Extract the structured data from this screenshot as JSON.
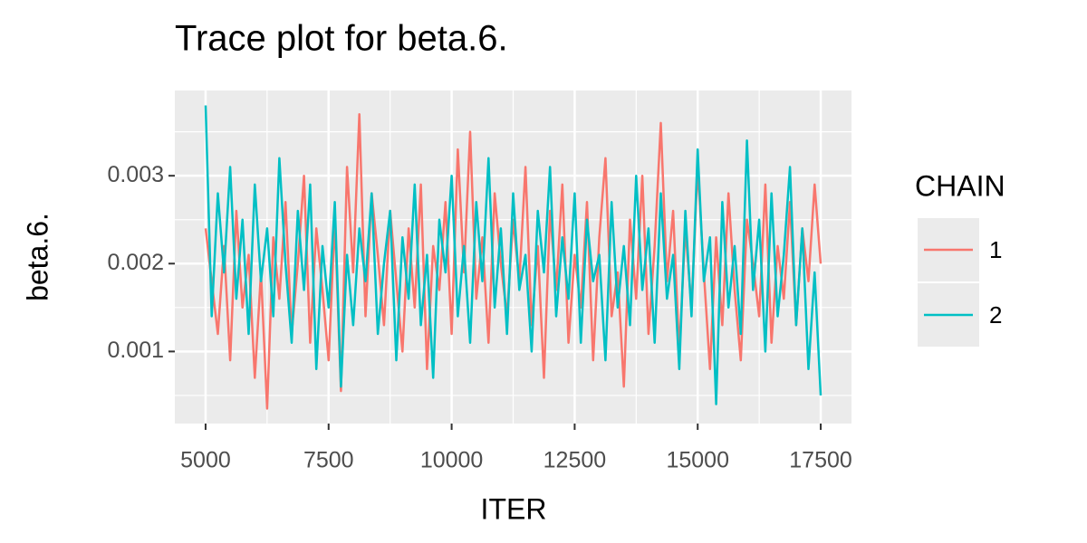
{
  "chart_data": {
    "type": "line",
    "title": "Trace plot for beta.6.",
    "xlabel": "ITER",
    "ylabel": "beta.6.",
    "legend_title": "CHAIN",
    "legend_position": "right",
    "grid": true,
    "xlim": [
      4375,
      18125
    ],
    "ylim": [
      0.00018,
      0.00397
    ],
    "xticks": [
      5000,
      7500,
      10000,
      12500,
      15000,
      17500
    ],
    "yticks": [
      0.001,
      0.002,
      0.003
    ],
    "x_minor_ticks": [
      6250,
      8750,
      11250,
      13750,
      16250
    ],
    "y_minor_ticks": [
      0.0005,
      0.0015,
      0.0025,
      0.0035
    ],
    "x": [
      5000,
      5125,
      5250,
      5375,
      5500,
      5625,
      5750,
      5875,
      6000,
      6125,
      6250,
      6375,
      6500,
      6625,
      6750,
      6875,
      7000,
      7125,
      7250,
      7375,
      7500,
      7625,
      7750,
      7875,
      8000,
      8125,
      8250,
      8375,
      8500,
      8625,
      8750,
      8875,
      9000,
      9125,
      9250,
      9375,
      9500,
      9625,
      9750,
      9875,
      10000,
      10125,
      10250,
      10375,
      10500,
      10625,
      10750,
      10875,
      11000,
      11125,
      11250,
      11375,
      11500,
      11625,
      11750,
      11875,
      12000,
      12125,
      12250,
      12375,
      12500,
      12625,
      12750,
      12875,
      13000,
      13125,
      13250,
      13375,
      13500,
      13625,
      13750,
      13875,
      14000,
      14125,
      14250,
      14375,
      14500,
      14625,
      14750,
      14875,
      15000,
      15125,
      15250,
      15375,
      15500,
      15625,
      15750,
      15875,
      16000,
      16125,
      16250,
      16375,
      16500,
      16625,
      16750,
      16875,
      17000,
      17125,
      17250,
      17375,
      17500
    ],
    "series": [
      {
        "name": "1",
        "color": "#F8766D",
        "values": [
          0.0024,
          0.0018,
          0.0012,
          0.0022,
          0.0009,
          0.0026,
          0.0015,
          0.0021,
          0.0007,
          0.0019,
          0.00035,
          0.0023,
          0.0016,
          0.0027,
          0.0012,
          0.002,
          0.003,
          0.0011,
          0.0024,
          0.0017,
          0.0009,
          0.0025,
          0.00055,
          0.0031,
          0.0019,
          0.0037,
          0.0014,
          0.0028,
          0.0021,
          0.0013,
          0.0026,
          0.0018,
          0.001,
          0.0024,
          0.0015,
          0.0029,
          0.0008,
          0.0022,
          0.0017,
          0.0027,
          0.0012,
          0.0033,
          0.0019,
          0.0035,
          0.0016,
          0.0023,
          0.0011,
          0.0028,
          0.002,
          0.0014,
          0.0025,
          0.0018,
          0.0031,
          0.0013,
          0.0022,
          0.0007,
          0.0026,
          0.0017,
          0.0029,
          0.0011,
          0.0021,
          0.0015,
          0.0027,
          0.0009,
          0.0023,
          0.0032,
          0.0014,
          0.0019,
          0.0006,
          0.0025,
          0.0016,
          0.003,
          0.0012,
          0.0022,
          0.0036,
          0.0018,
          0.0026,
          0.001,
          0.0024,
          0.0015,
          0.0031,
          0.0019,
          0.0008,
          0.0023,
          0.0013,
          0.0028,
          0.0017,
          0.0009,
          0.0025,
          0.002,
          0.0014,
          0.0029,
          0.0011,
          0.0022,
          0.0016,
          0.0027,
          0.0013,
          0.0024,
          0.0018,
          0.0029,
          0.002
        ]
      },
      {
        "name": "2",
        "color": "#00BFC4",
        "values": [
          0.0038,
          0.0014,
          0.0028,
          0.0019,
          0.0031,
          0.0016,
          0.0025,
          0.0012,
          0.0029,
          0.0018,
          0.0024,
          0.0014,
          0.0032,
          0.002,
          0.0011,
          0.0026,
          0.0017,
          0.0029,
          0.0008,
          0.0022,
          0.0015,
          0.0027,
          0.0006,
          0.0021,
          0.0013,
          0.0024,
          0.0018,
          0.0028,
          0.0012,
          0.002,
          0.0026,
          0.0009,
          0.0023,
          0.0016,
          0.0029,
          0.0013,
          0.0021,
          0.0007,
          0.0025,
          0.0019,
          0.003,
          0.0014,
          0.0022,
          0.0011,
          0.0027,
          0.0018,
          0.0032,
          0.0015,
          0.0024,
          0.0012,
          0.0028,
          0.0017,
          0.0021,
          0.001,
          0.0026,
          0.0019,
          0.0031,
          0.0014,
          0.0023,
          0.0016,
          0.0028,
          0.0011,
          0.0025,
          0.0018,
          0.0021,
          0.0009,
          0.0027,
          0.0015,
          0.0022,
          0.0013,
          0.003,
          0.0017,
          0.0024,
          0.0011,
          0.0028,
          0.0016,
          0.0021,
          0.0008,
          0.0026,
          0.0014,
          0.0033,
          0.0018,
          0.0023,
          0.0004,
          0.0027,
          0.0015,
          0.0022,
          0.0012,
          0.0034,
          0.0017,
          0.0025,
          0.001,
          0.0028,
          0.0014,
          0.0021,
          0.0031,
          0.0013,
          0.0024,
          0.0008,
          0.0019,
          0.0005
        ]
      }
    ]
  }
}
